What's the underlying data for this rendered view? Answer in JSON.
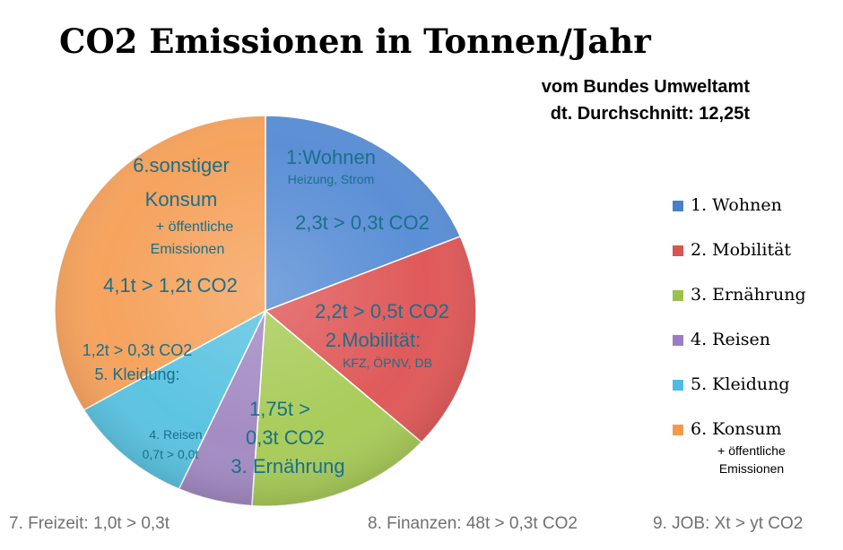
{
  "chart_data": {
    "type": "pie",
    "title": "CO2 Emissionen in Tonnen/Jahr",
    "subtitle": [
      "vom Bundes Umweltamt",
      "dt. Durchschnitt: 12,25t"
    ],
    "slices": [
      {
        "key": "wohnen",
        "value": 2.3,
        "color": "#5b8fd6",
        "labels": [
          "1:Wohnen",
          "Heizung, Strom",
          "2,3t >  0,3t CO2"
        ]
      },
      {
        "key": "mobilitaet",
        "value": 2.2,
        "color": "#e05a5a",
        "labels": [
          "2,2t > 0,5t CO2",
          "2.Mobilität:",
          "KFZ, ÖPNV, DB"
        ]
      },
      {
        "key": "ernaehrung",
        "value": 1.75,
        "color": "#a9cc5a",
        "labels": [
          "1,75t >",
          "0,3t CO2",
          "3. Ernährung"
        ]
      },
      {
        "key": "reisen",
        "value": 0.7,
        "color": "#a48cc4",
        "labels": [
          "4. Reisen",
          "0,7t > 0,0t"
        ]
      },
      {
        "key": "kleidung",
        "value": 1.2,
        "color": "#5cc4e2",
        "labels": [
          "1,2t > 0,3t CO2",
          "5. Kleidung:"
        ]
      },
      {
        "key": "konsum",
        "value": 4.1,
        "color": "#f6a35e",
        "labels": [
          "6.sonstiger",
          "Konsum",
          "+ öffentliche",
          "Emissionen",
          "4,1t > 1,2t CO2"
        ]
      }
    ],
    "legend": [
      {
        "label": "1. Wohnen",
        "color": "#4a7fc8"
      },
      {
        "label": "2. Mobilität",
        "color": "#d9534f"
      },
      {
        "label": "3. Ernährung",
        "color": "#9bc04b"
      },
      {
        "label": "4. Reisen",
        "color": "#9a7ebf"
      },
      {
        "label": "5. Kleidung",
        "color": "#4bbde0"
      },
      {
        "label": "6. Konsum",
        "color": "#f39a4c"
      }
    ],
    "legend_note": [
      "+ öffentliche",
      "Emissionen"
    ],
    "legend_position": "right"
  },
  "footer": [
    "7. Freizeit: 1,0t > 0,3t",
    "8. Finanzen: 48t > 0,3t CO2",
    "9. JOB: Xt > yt CO2"
  ]
}
